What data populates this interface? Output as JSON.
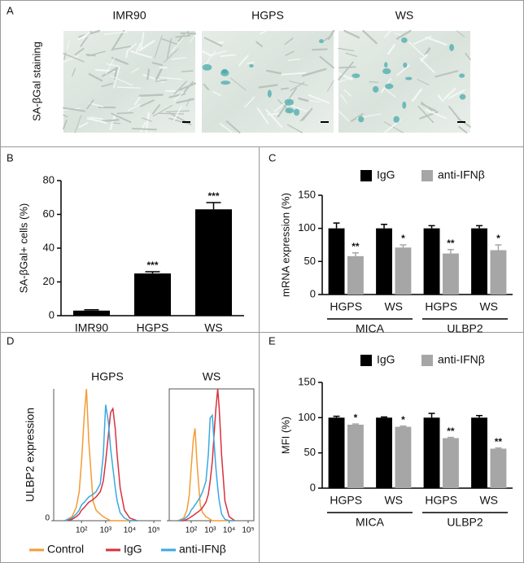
{
  "panel_a": {
    "label": "A",
    "ylabel": "SA-βGal staining",
    "images": [
      "IMR90",
      "HGPS",
      "WS"
    ]
  },
  "chart_data": [
    {
      "type": "bar",
      "panel": "B",
      "ylabel": "SA-βGal+ cells (%)",
      "categories": [
        "IMR90",
        "HGPS",
        "WS"
      ],
      "values": [
        3,
        25,
        63
      ],
      "errors": [
        0.5,
        1,
        4
      ],
      "significance": [
        null,
        "***",
        "***"
      ],
      "color": "#000000",
      "ylim": [
        0,
        80
      ],
      "yticks": [
        0,
        20,
        40,
        60,
        80
      ]
    },
    {
      "type": "bar",
      "panel": "C",
      "ylabel": "mRNA expression (%)",
      "categories": [
        "HGPS",
        "WS",
        "HGPS",
        "WS"
      ],
      "groups": [
        "MICA",
        "ULBP2"
      ],
      "series": [
        {
          "name": "IgG",
          "color": "#000000",
          "values": [
            100,
            100,
            100,
            100
          ],
          "errors": [
            8,
            6,
            4,
            4
          ],
          "significance": [
            null,
            null,
            null,
            null
          ]
        },
        {
          "name": "anti-IFNβ",
          "color": "#a6a6a6",
          "values": [
            58,
            71,
            62,
            67
          ],
          "errors": [
            5,
            4,
            6,
            8
          ],
          "significance": [
            "**",
            "*",
            "**",
            "*"
          ]
        }
      ],
      "ylim": [
        0,
        150
      ],
      "yticks": [
        0,
        50,
        100,
        150
      ]
    },
    {
      "type": "line",
      "panel": "D",
      "ylabel": "ULBP2 expression",
      "log_x": true,
      "x": [
        20,
        40,
        60,
        80,
        100,
        130,
        160,
        200,
        300,
        400,
        600,
        800,
        1000,
        1300,
        1600,
        2000,
        2500,
        3000,
        4000,
        6000,
        10000,
        20000
      ],
      "xlim": [
        7,
        200000
      ],
      "xticks": [
        {
          "value": 100,
          "label": "10²"
        },
        {
          "value": 1000,
          "label": "10³"
        },
        {
          "value": 10000,
          "label": "10⁴"
        },
        {
          "value": 100000,
          "label": "10⁵"
        }
      ],
      "ylim": [
        0,
        100
      ],
      "yticks": [
        0
      ],
      "series": [
        {
          "name": "Control",
          "color": "#f39c34"
        },
        {
          "name": "IgG",
          "color": "#d9303e"
        },
        {
          "name": "anti-IFNβ",
          "color": "#3aa9e0"
        }
      ],
      "subplots": [
        {
          "title": "HGPS",
          "values": [
            [
              0,
              3,
              10,
              22,
              45,
              80,
              100,
              60,
              15,
              8,
              5,
              3,
              2,
              1,
              0,
              0,
              0,
              0,
              0,
              0,
              0,
              0
            ],
            [
              0,
              1,
              3,
              5,
              8,
              10,
              12,
              14,
              16,
              18,
              22,
              30,
              45,
              65,
              82,
              85,
              70,
              50,
              25,
              8,
              2,
              0
            ],
            [
              0,
              2,
              5,
              8,
              12,
              14,
              16,
              18,
              20,
              22,
              28,
              50,
              88,
              75,
              55,
              40,
              25,
              15,
              6,
              2,
              0,
              0
            ]
          ]
        },
        {
          "title": "WS",
          "values": [
            [
              0,
              2,
              8,
              20,
              40,
              62,
              70,
              45,
              12,
              6,
              3,
              2,
              1,
              0,
              0,
              0,
              0,
              0,
              0,
              0,
              0,
              0
            ],
            [
              0,
              0,
              1,
              2,
              3,
              4,
              5,
              6,
              8,
              10,
              14,
              20,
              30,
              45,
              65,
              85,
              100,
              85,
              50,
              15,
              3,
              0
            ],
            [
              0,
              1,
              3,
              5,
              8,
              10,
              12,
              14,
              18,
              22,
              30,
              50,
              78,
              80,
              60,
              40,
              25,
              15,
              5,
              1,
              0,
              0
            ]
          ]
        }
      ]
    },
    {
      "type": "bar",
      "panel": "E",
      "ylabel": "MFI (%)",
      "categories": [
        "HGPS",
        "WS",
        "HGPS",
        "WS"
      ],
      "groups": [
        "MICA",
        "ULBP2"
      ],
      "series": [
        {
          "name": "IgG",
          "color": "#000000",
          "values": [
            100,
            100,
            100,
            100
          ],
          "errors": [
            2,
            1,
            6,
            3
          ],
          "significance": [
            null,
            null,
            null,
            null
          ]
        },
        {
          "name": "anti-IFNβ",
          "color": "#a6a6a6",
          "values": [
            90,
            87,
            71,
            56
          ],
          "errors": [
            1,
            1,
            1,
            1
          ],
          "significance": [
            "*",
            "*",
            "**",
            "**"
          ]
        }
      ],
      "ylim": [
        0,
        150
      ],
      "yticks": [
        0,
        50,
        100,
        150
      ]
    }
  ]
}
